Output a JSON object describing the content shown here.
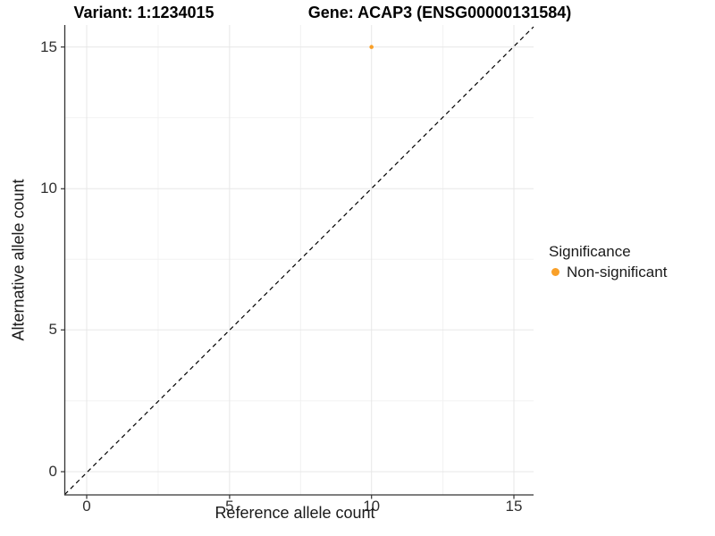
{
  "titles": {
    "variant": "Variant: 1:1234015",
    "gene": "Gene: ACAP3 (ENSG00000131584)"
  },
  "axes": {
    "x": {
      "label": "Reference allele count",
      "ticks": [
        "0",
        "5",
        "10",
        "15"
      ]
    },
    "y": {
      "label": "Alternative allele count",
      "ticks": [
        "0",
        "5",
        "10",
        "15"
      ]
    }
  },
  "legend": {
    "title": "Significance",
    "items": [
      {
        "label": "Non-significant",
        "color": "#F9A029"
      }
    ]
  },
  "colors": {
    "point": "#F9A029",
    "axis_line": "#333333",
    "grid_major": "#e7e7e7",
    "grid_minor": "#f2f2f2",
    "reference_line": "#000000",
    "background": "#ffffff"
  },
  "chart_data": {
    "type": "scatter",
    "title": "Variant: 1:1234015   Gene: ACAP3 (ENSG00000131584)",
    "xlabel": "Reference allele count",
    "ylabel": "Alternative allele count",
    "xlim": [
      -0.78,
      15.7
    ],
    "ylim": [
      -0.82,
      15.77
    ],
    "x_ticks": [
      0,
      5,
      10,
      15
    ],
    "y_ticks": [
      0,
      5,
      10,
      15
    ],
    "x_minor_ticks": [
      2.5,
      7.5,
      12.5
    ],
    "y_minor_ticks": [
      2.5,
      7.5,
      12.5
    ],
    "grid": true,
    "legend_position": "right",
    "legend_title": "Significance",
    "series": [
      {
        "name": "Non-significant",
        "color": "#F9A029",
        "points": [
          {
            "x": 10,
            "y": 15
          }
        ]
      }
    ],
    "reference_line": {
      "type": "identity y=x",
      "style": "dashed",
      "color": "#000000"
    }
  }
}
